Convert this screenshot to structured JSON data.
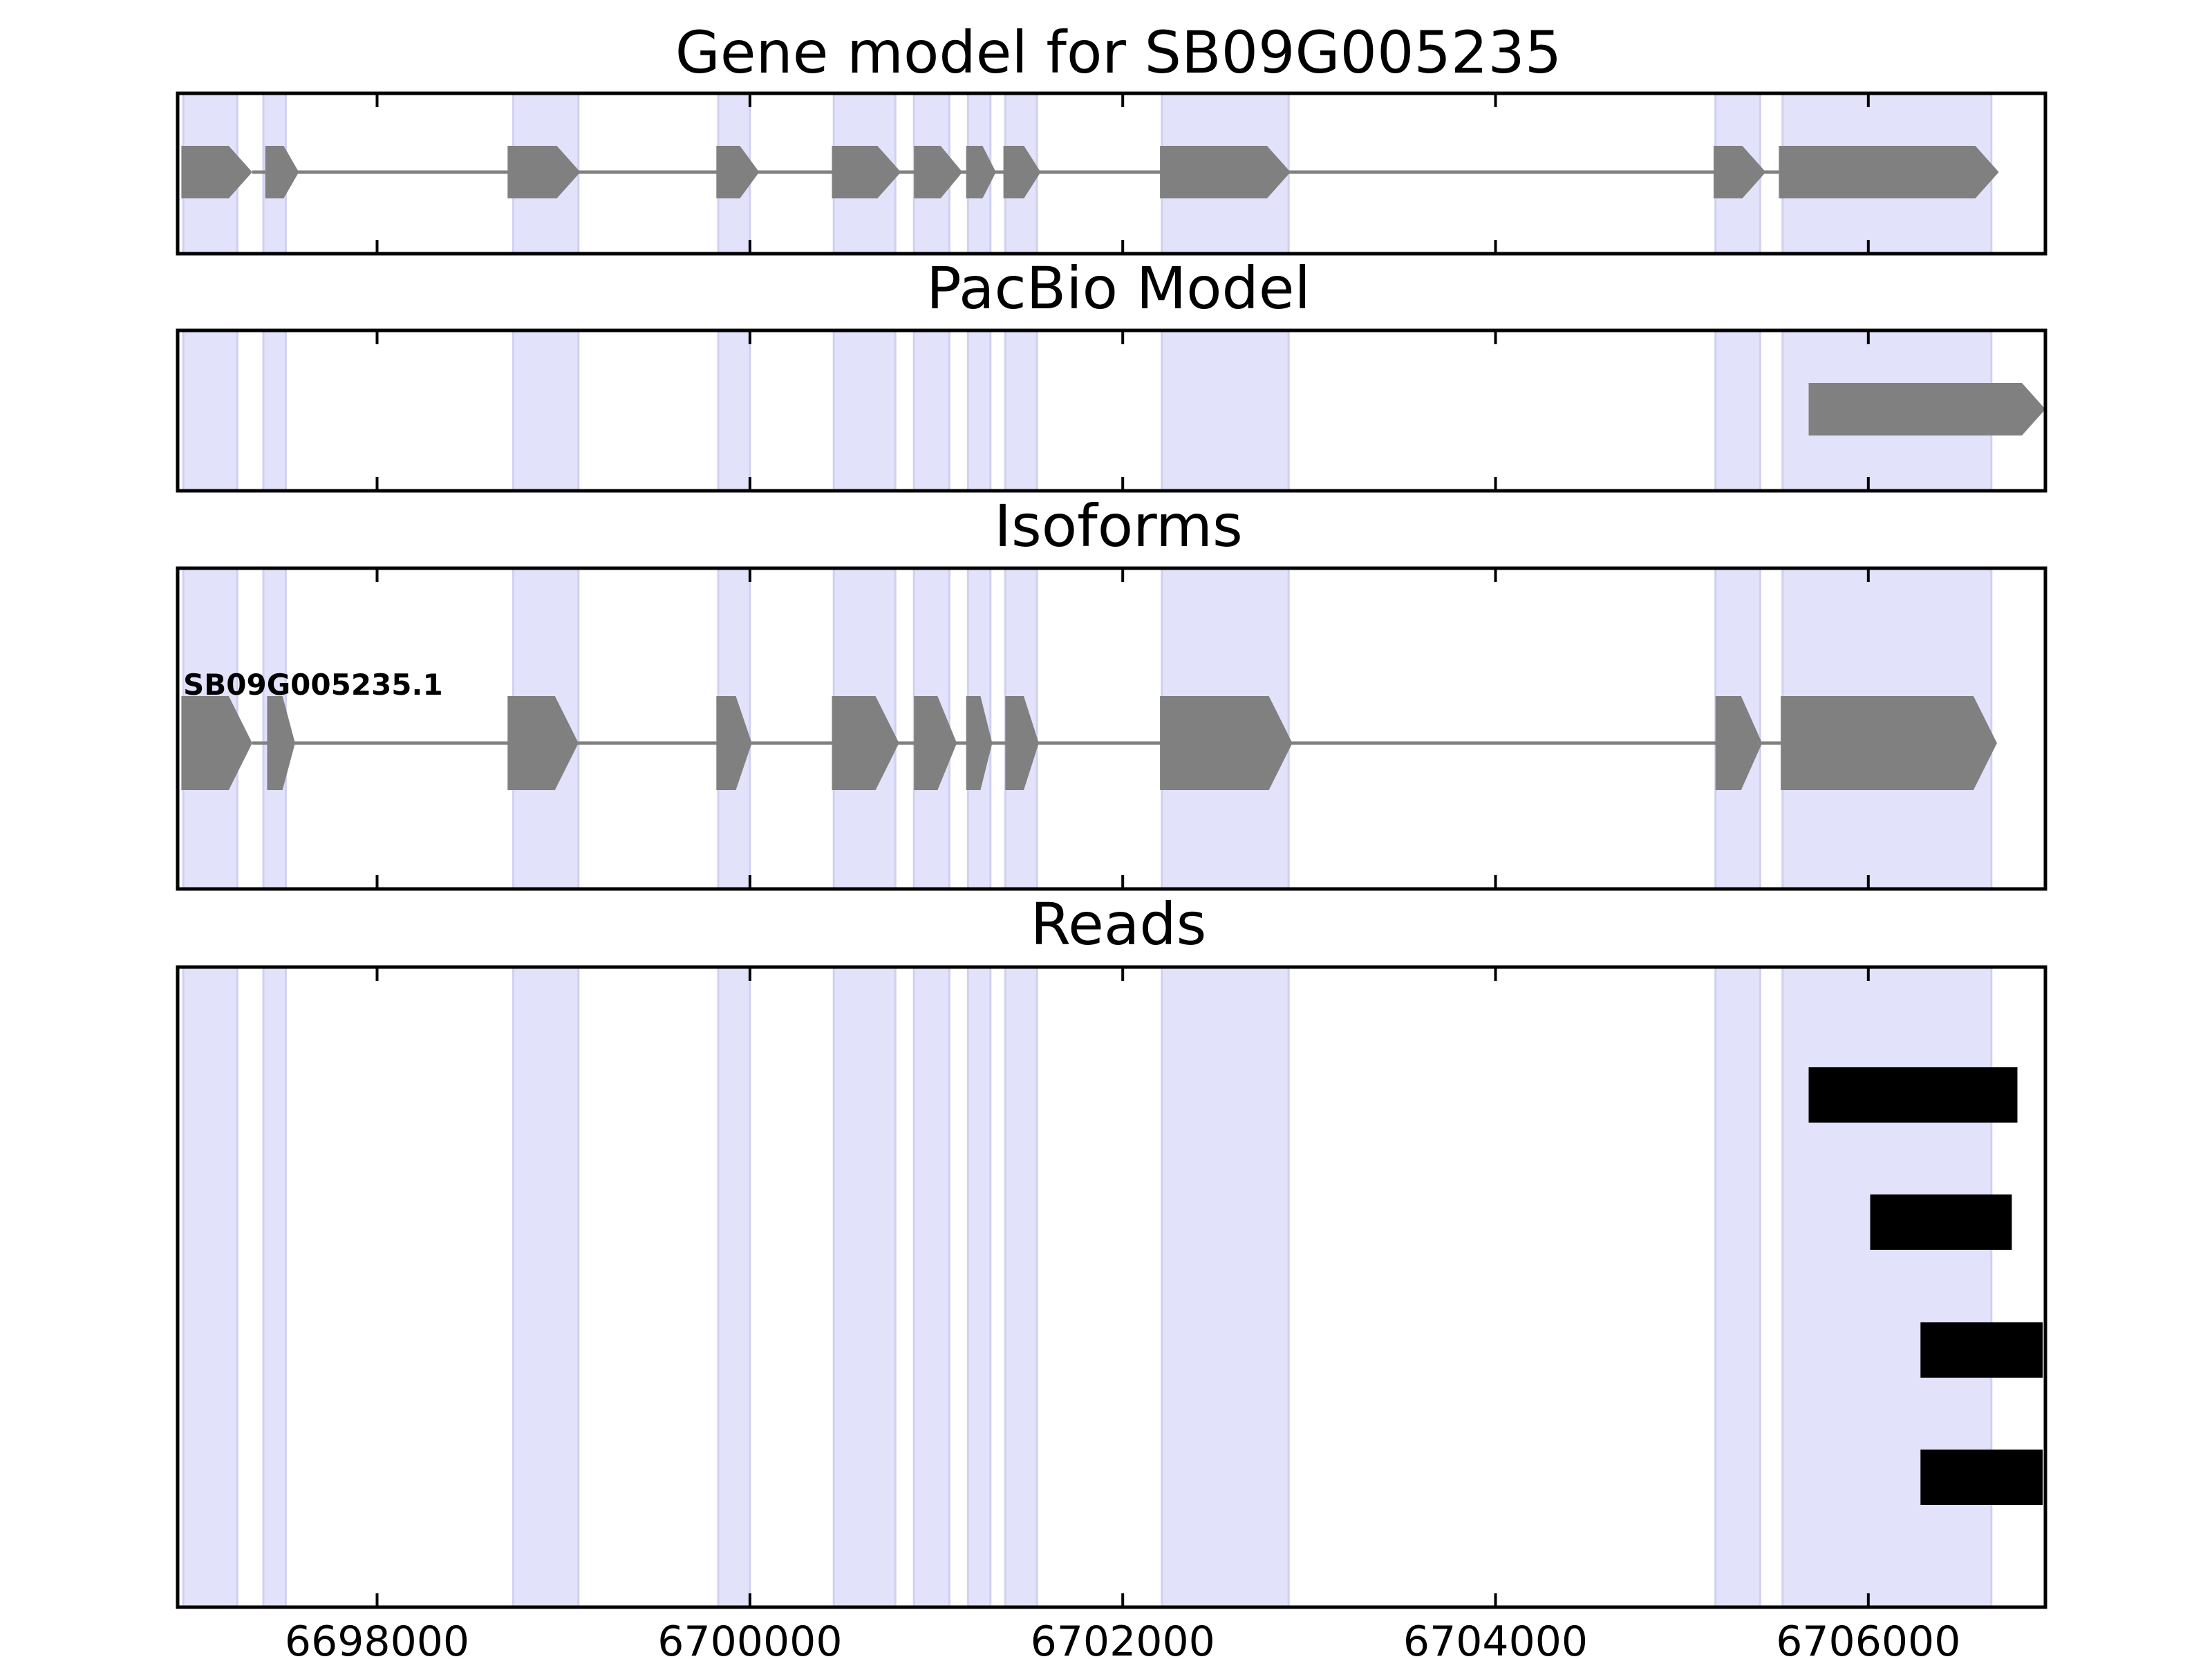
{
  "chart_data": [
    {
      "type": "gene-track",
      "title": "Gene model for SB09G005235",
      "strand": "+",
      "exons": [
        [
          6696950,
          6697330
        ],
        [
          6697400,
          6697580
        ],
        [
          6698700,
          6699090
        ],
        [
          6699820,
          6700050
        ],
        [
          6700440,
          6700810
        ],
        [
          6700880,
          6701140
        ],
        [
          6701160,
          6701320
        ],
        [
          6701360,
          6701560
        ],
        [
          6702200,
          6702900
        ],
        [
          6705170,
          6705450
        ],
        [
          6705520,
          6706700
        ]
      ]
    },
    {
      "type": "gene-track",
      "title": "PacBio Model",
      "strand": "+",
      "exons": [
        [
          6705680,
          6706950
        ]
      ]
    },
    {
      "type": "gene-track",
      "title": "Isoforms",
      "strand": "+",
      "isoforms": [
        {
          "label": "SB09G005235.1",
          "exons": [
            [
              6696950,
              6697330
            ],
            [
              6697410,
              6697560
            ],
            [
              6698700,
              6699080
            ],
            [
              6699820,
              6700010
            ],
            [
              6700440,
              6700800
            ],
            [
              6700880,
              6701110
            ],
            [
              6701160,
              6701300
            ],
            [
              6701370,
              6701550
            ],
            [
              6702200,
              6702910
            ],
            [
              6705180,
              6705430
            ],
            [
              6705530,
              6706690
            ]
          ]
        }
      ]
    },
    {
      "type": "reads",
      "title": "Reads",
      "reads": [
        [
          6705680,
          6706800
        ],
        [
          6706010,
          6706770
        ],
        [
          6706280,
          6706950
        ],
        [
          6706280,
          6706950
        ]
      ]
    }
  ],
  "shared": {
    "xlim": [
      6696930,
      6706950
    ],
    "xticks": [
      6698000,
      6700000,
      6702000,
      6704000,
      6706000
    ],
    "xtick_labels": [
      "6698000",
      "6700000",
      "6702000",
      "6704000",
      "6706000"
    ],
    "highlight_regions": [
      [
        6696960,
        6697250
      ],
      [
        6697390,
        6697510
      ],
      [
        6698730,
        6699080
      ],
      [
        6699830,
        6700000
      ],
      [
        6700450,
        6700780
      ],
      [
        6700880,
        6701070
      ],
      [
        6701170,
        6701290
      ],
      [
        6701370,
        6701540
      ],
      [
        6702210,
        6702890
      ],
      [
        6705180,
        6705420
      ],
      [
        6705540,
        6706660
      ]
    ],
    "colors": {
      "highlight": "#e2e2fb",
      "highlight_edge": "#d0d0f0",
      "exon": "#808080",
      "intron": "#808080",
      "read": "#000000",
      "frame": "#000000"
    }
  }
}
